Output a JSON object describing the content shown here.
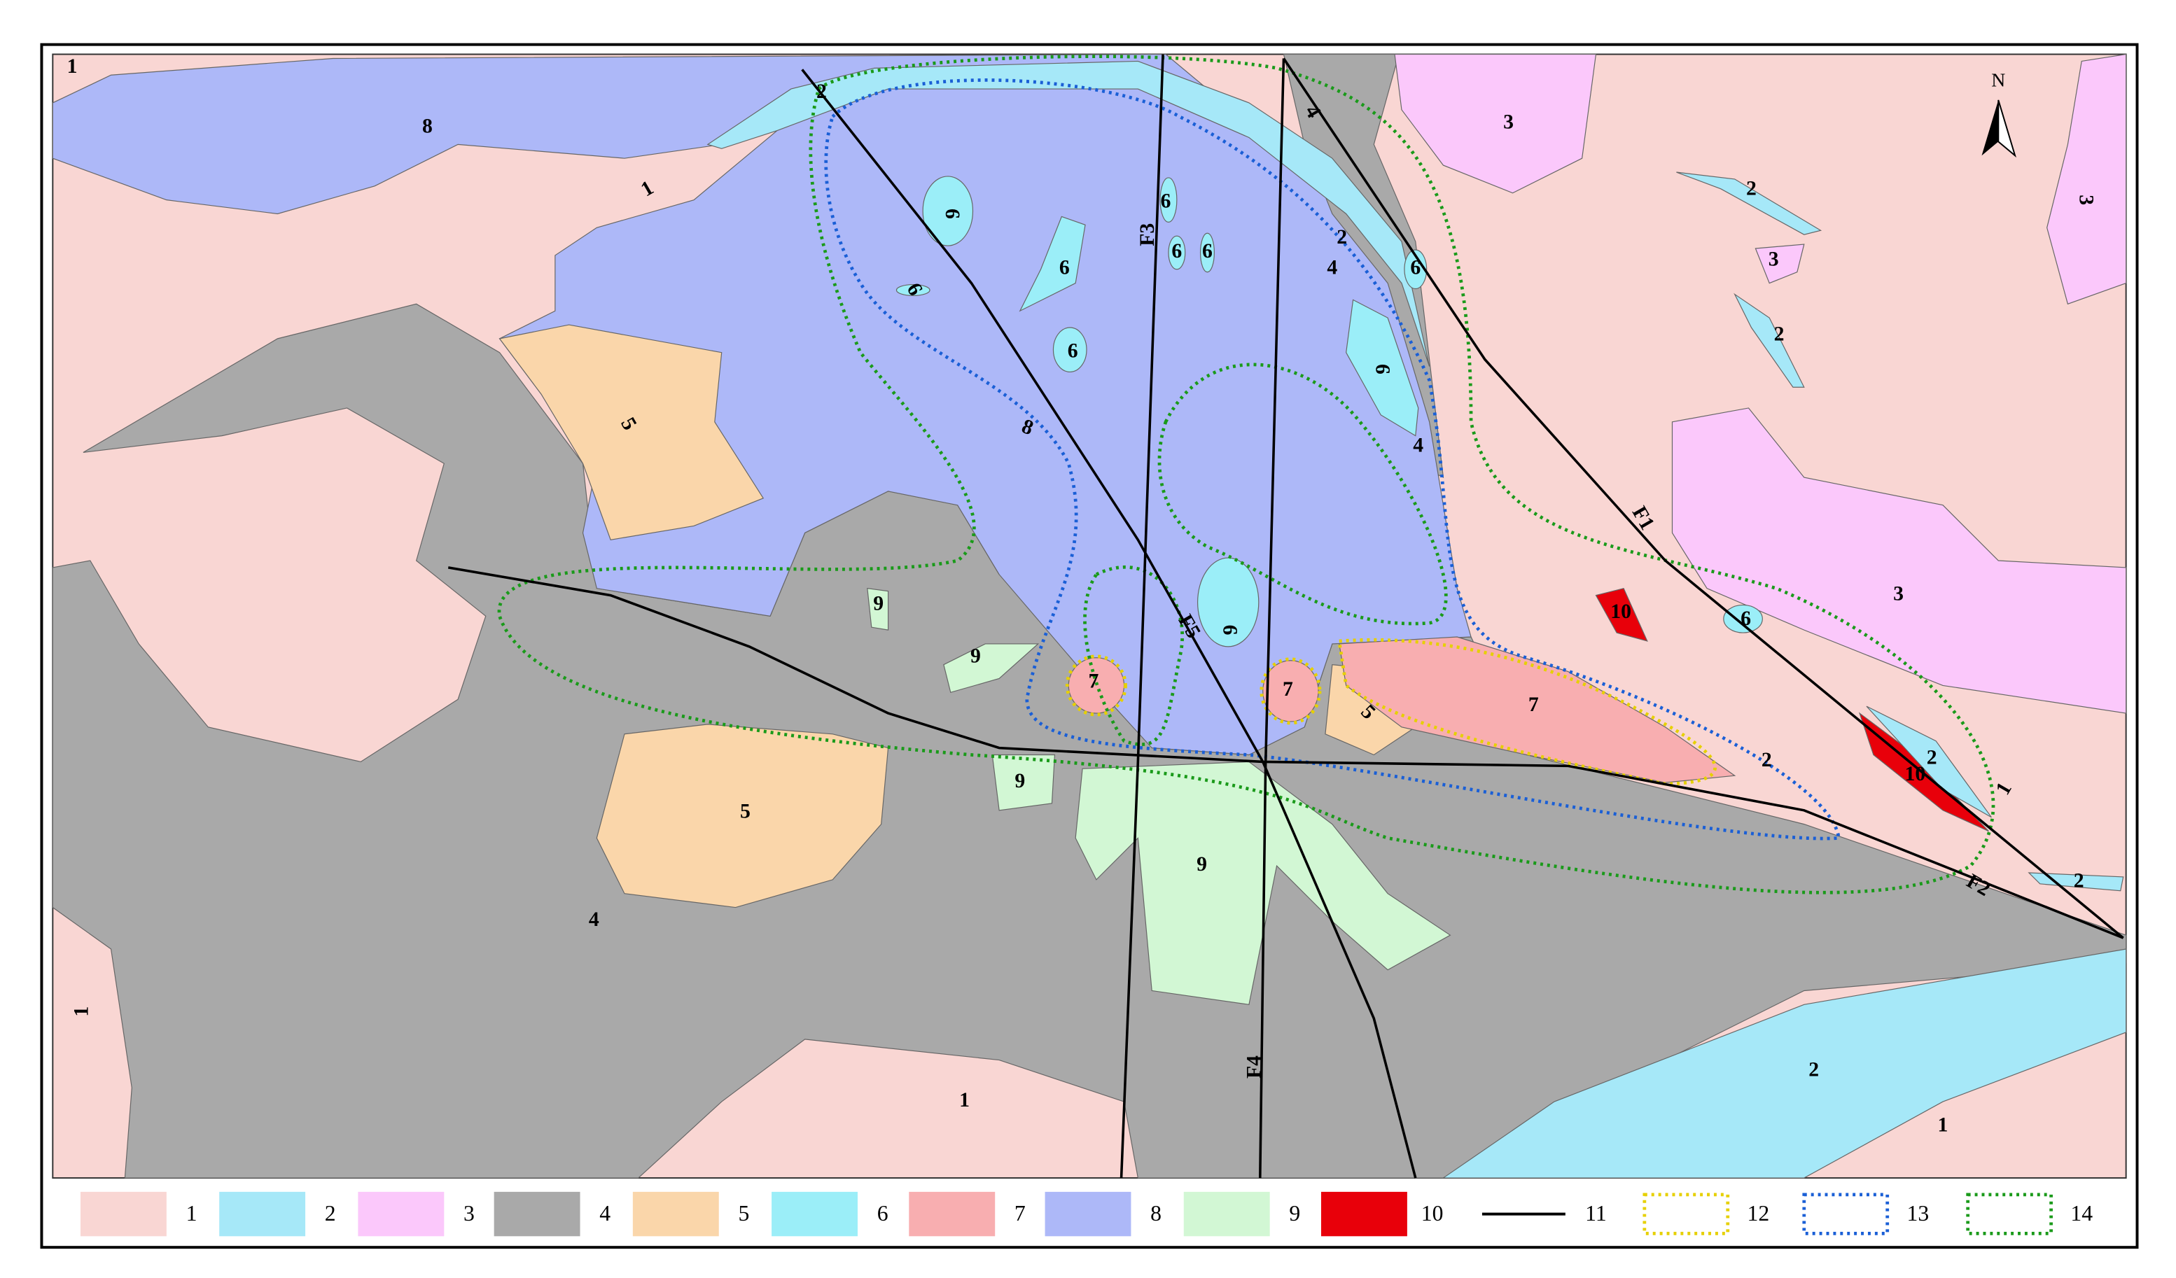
{
  "map": {
    "north": "N",
    "labels": [
      "1",
      "1",
      "1",
      "1",
      "1",
      "1",
      "8",
      "8",
      "3",
      "3",
      "3",
      "3",
      "2",
      "2",
      "2",
      "2",
      "2",
      "2",
      "2",
      "2",
      "4",
      "4",
      "4",
      "4",
      "5",
      "5",
      "5",
      "6",
      "6",
      "6",
      "6",
      "6",
      "6",
      "6",
      "6",
      "6",
      "6",
      "6",
      "7",
      "7",
      "7",
      "9",
      "9",
      "9",
      "9",
      "10",
      "10"
    ],
    "faults": [
      "F1",
      "F2",
      "F3",
      "F4",
      "F5"
    ],
    "legend": [
      "1",
      "2",
      "3",
      "4",
      "5",
      "6",
      "7",
      "8",
      "9",
      "10",
      "11",
      "12",
      "13",
      "14"
    ]
  }
}
